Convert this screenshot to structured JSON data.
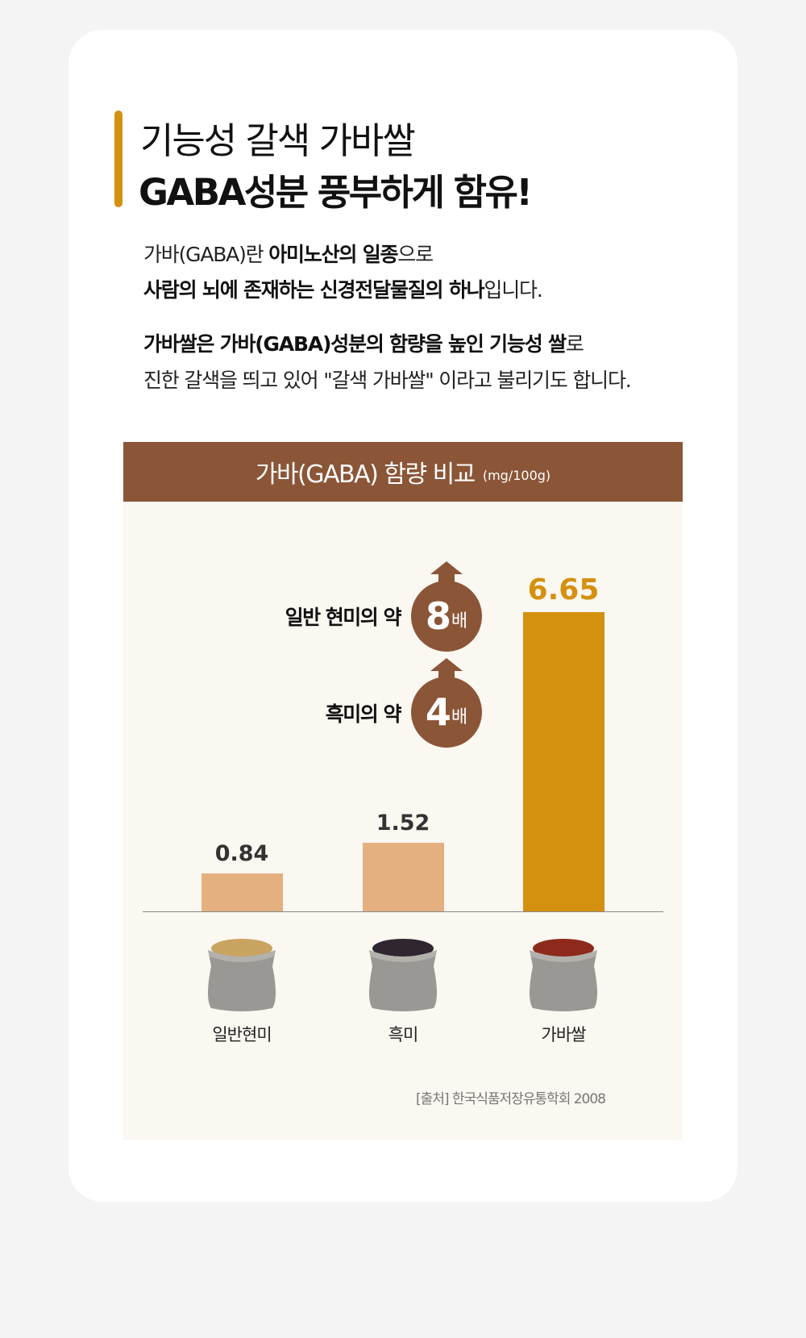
{
  "title": {
    "line1": "기능성 갈색 가바쌀",
    "line2": "GABA성분 풍부하게 함유!"
  },
  "intro": {
    "l1a": "가바(GABA)란 ",
    "l1b": "아미노산의 일종",
    "l1c": "으로",
    "l2a": "사람의 뇌에 존재하는 신경전달물질의 하나",
    "l2b": "입니다.",
    "l3a": "가바쌀은 가바(GABA)성분의 함량을 높인 기능성 쌀",
    "l3b": "로",
    "l4": "진한 갈색을 띄고 있어 \"갈색 가바쌀\" 이라고 불리기도 합니다."
  },
  "colors": {
    "accent": "#d4900f",
    "brown": "#8b5537",
    "light_bar": "#e5b07f"
  },
  "chart_data": {
    "type": "bar",
    "title": "가바(GABA) 함량 비교",
    "unit": "(mg/100g)",
    "categories": [
      "일반현미",
      "흑미",
      "가바쌀"
    ],
    "values": [
      0.84,
      1.52,
      6.65
    ],
    "value_labels": [
      "0.84",
      "1.52",
      "6.65"
    ],
    "comparisons": [
      {
        "label": "일반 현미의 약",
        "num": "8",
        "unit": "배"
      },
      {
        "label": "흑미의 약",
        "num": "4",
        "unit": "배"
      }
    ],
    "source": "[출처] 한국식품저장유통학회 2008"
  }
}
